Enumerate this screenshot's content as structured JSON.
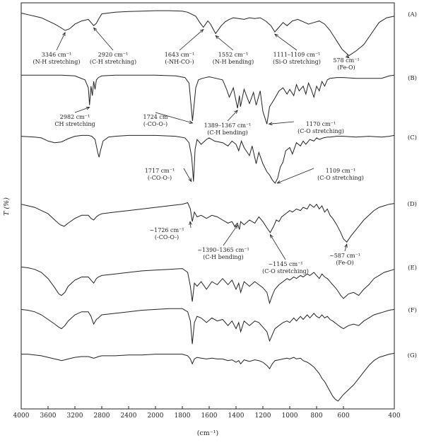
{
  "chart_data": {
    "type": "line",
    "title": "",
    "xlabel": "(cm⁻¹)",
    "ylabel": "T (%)",
    "xlim": [
      4000,
      400
    ],
    "x_reversed": true,
    "x_ticks": [
      4000,
      3600,
      3200,
      2800,
      2400,
      2000,
      1800,
      1600,
      1400,
      1200,
      1000,
      800,
      600,
      400
    ],
    "x_tick_labels": [
      "4000",
      "3600",
      "3200",
      "2800",
      "2400",
      "2000",
      "1800",
      "1600",
      "1400",
      "1200",
      "1000",
      "800",
      "600",
      "400"
    ],
    "grid": false,
    "stacked": true,
    "series": [
      {
        "name": "(A)",
        "x": [
          4000,
          3900,
          3800,
          3700,
          3600,
          3500,
          3420,
          3346,
          3280,
          3200,
          3100,
          3000,
          2960,
          2920,
          2880,
          2850,
          2800,
          2600,
          2400,
          2200,
          2000,
          1900,
          1800,
          1760,
          1700,
          1670,
          1643,
          1610,
          1590,
          1552,
          1510,
          1480,
          1450,
          1420,
          1380,
          1340,
          1300,
          1260,
          1220,
          1180,
          1140,
          1111,
          1080,
          1050,
          1020,
          980,
          940,
          900,
          860,
          820,
          780,
          740,
          700,
          670,
          640,
          610,
          578,
          550,
          520,
          490,
          460,
          430,
          400
        ],
        "y": [
          96,
          94,
          92,
          90,
          86,
          82,
          78,
          74,
          76,
          82,
          86,
          88,
          84,
          80,
          83,
          88,
          95,
          97,
          98,
          98.5,
          99,
          99,
          98.5,
          97,
          92,
          84,
          78,
          86,
          82,
          70,
          80,
          85,
          88,
          90,
          89,
          88,
          90,
          89,
          90,
          86,
          80,
          72,
          78,
          84,
          80,
          86,
          88,
          85,
          82,
          84,
          86,
          82,
          74,
          66,
          58,
          50,
          42,
          48,
          56,
          70,
          84,
          90,
          92
        ]
      },
      {
        "name": "(B)",
        "x": [
          4000,
          3800,
          3600,
          3400,
          3200,
          3050,
          3000,
          2982,
          2960,
          2940,
          2920,
          2900,
          2880,
          2850,
          2800,
          2600,
          2400,
          2000,
          1850,
          1780,
          1750,
          1724,
          1700,
          1680,
          1650,
          1600,
          1550,
          1500,
          1470,
          1450,
          1420,
          1389,
          1375,
          1367,
          1340,
          1300,
          1270,
          1250,
          1220,
          1200,
          1170,
          1150,
          1120,
          1100,
          1080,
          1050,
          1020,
          1000,
          970,
          950,
          930,
          900,
          880,
          860,
          840,
          820,
          800,
          780,
          760,
          740,
          720,
          700,
          650,
          600,
          550,
          500,
          450,
          420,
          400
        ],
        "y": [
          98,
          98,
          98,
          98,
          97,
          92,
          82,
          60,
          84,
          72,
          90,
          80,
          92,
          95,
          97,
          98,
          98,
          98,
          97,
          95,
          88,
          40,
          82,
          92,
          94,
          96,
          94,
          92,
          80,
          70,
          82,
          56,
          72,
          58,
          80,
          62,
          76,
          60,
          78,
          52,
          36,
          58,
          66,
          72,
          78,
          82,
          74,
          80,
          72,
          86,
          78,
          84,
          74,
          88,
          80,
          70,
          84,
          78,
          90,
          84,
          92,
          94,
          95,
          95,
          94,
          94,
          94,
          97,
          98
        ]
      },
      {
        "name": "(C)",
        "x": [
          4000,
          3800,
          3700,
          3600,
          3500,
          3400,
          3300,
          3200,
          3100,
          3000,
          2950,
          2900,
          2880,
          2860,
          2840,
          2820,
          2780,
          2700,
          2600,
          2400,
          2000,
          1850,
          1780,
          1750,
          1730,
          1717,
          1705,
          1690,
          1660,
          1620,
          1600,
          1560,
          1500,
          1460,
          1430,
          1400,
          1380,
          1360,
          1340,
          1300,
          1280,
          1250,
          1230,
          1200,
          1170,
          1150,
          1130,
          1109,
          1090,
          1070,
          1050,
          1030,
          1000,
          980,
          950,
          920,
          900,
          880,
          850,
          820,
          800,
          780,
          750,
          720,
          700,
          650,
          600,
          550,
          500,
          450,
          420,
          400
        ],
        "y": [
          96,
          95,
          94,
          90,
          88,
          89,
          93,
          96,
          97,
          97,
          96,
          92,
          84,
          76,
          70,
          78,
          90,
          95,
          96,
          97,
          97,
          96,
          94,
          88,
          70,
          40,
          80,
          92,
          86,
          92,
          94,
          90,
          88,
          84,
          90,
          86,
          78,
          90,
          82,
          72,
          84,
          62,
          76,
          62,
          52,
          48,
          42,
          38,
          44,
          58,
          64,
          78,
          82,
          74,
          88,
          84,
          90,
          86,
          92,
          90,
          94,
          92,
          94,
          95,
          95,
          96,
          96,
          95,
          96,
          95,
          96,
          97
        ]
      },
      {
        "name": "(D)",
        "x": [
          4000,
          3900,
          3800,
          3700,
          3600,
          3500,
          3420,
          3360,
          3300,
          3200,
          3100,
          3000,
          2960,
          2920,
          2880,
          2850,
          2800,
          2600,
          2400,
          2200,
          2000,
          1900,
          1800,
          1760,
          1740,
          1726,
          1710,
          1690,
          1660,
          1620,
          1580,
          1540,
          1500,
          1460,
          1430,
          1410,
          1390,
          1375,
          1365,
          1340,
          1300,
          1260,
          1230,
          1200,
          1170,
          1145,
          1120,
          1100,
          1080,
          1060,
          1030,
          1000,
          980,
          950,
          920,
          900,
          870,
          850,
          820,
          800,
          780,
          760,
          740,
          720,
          700,
          680,
          650,
          620,
          600,
          587,
          570,
          540,
          520,
          500,
          480,
          460,
          440,
          420,
          400
        ],
        "y": [
          94,
          92,
          90,
          86,
          82,
          74,
          68,
          66,
          70,
          76,
          80,
          80,
          76,
          74,
          78,
          80,
          82,
          84,
          86,
          88,
          90,
          92,
          94,
          96,
          88,
          72,
          84,
          78,
          80,
          76,
          80,
          78,
          74,
          70,
          72,
          66,
          70,
          62,
          72,
          68,
          74,
          70,
          78,
          72,
          64,
          58,
          66,
          74,
          72,
          78,
          82,
          86,
          84,
          88,
          86,
          90,
          88,
          94,
          90,
          94,
          88,
          92,
          84,
          88,
          80,
          76,
          68,
          58,
          50,
          46,
          54,
          66,
          74,
          80,
          86,
          90,
          92,
          94,
          95
        ]
      },
      {
        "name": "(E)",
        "x": [
          4000,
          3900,
          3800,
          3700,
          3600,
          3500,
          3440,
          3400,
          3350,
          3300,
          3200,
          3100,
          3000,
          2960,
          2920,
          2880,
          2850,
          2800,
          2600,
          2400,
          2200,
          2000,
          1900,
          1800,
          1760,
          1740,
          1726,
          1710,
          1690,
          1660,
          1620,
          1580,
          1540,
          1500,
          1460,
          1430,
          1400,
          1380,
          1365,
          1340,
          1300,
          1260,
          1230,
          1200,
          1170,
          1150,
          1130,
          1110,
          1080,
          1050,
          1020,
          1000,
          970,
          950,
          920,
          900,
          870,
          850,
          820,
          800,
          780,
          760,
          740,
          720,
          700,
          680,
          650,
          620,
          600,
          580,
          560,
          540,
          520,
          500,
          480,
          460,
          440,
          420,
          400
        ],
        "y": [
          95,
          94,
          92,
          88,
          80,
          68,
          60,
          58,
          62,
          70,
          78,
          82,
          82,
          78,
          74,
          80,
          82,
          84,
          86,
          88,
          90,
          91,
          92,
          93,
          88,
          70,
          50,
          74,
          70,
          76,
          66,
          76,
          72,
          80,
          72,
          78,
          66,
          74,
          62,
          76,
          70,
          76,
          72,
          68,
          62,
          48,
          58,
          66,
          72,
          76,
          80,
          78,
          82,
          80,
          84,
          82,
          86,
          84,
          88,
          84,
          80,
          86,
          82,
          80,
          76,
          72,
          66,
          58,
          54,
          60,
          62,
          58,
          66,
          72,
          80,
          84,
          88,
          90,
          92
        ]
      },
      {
        "name": "(F)",
        "x": [
          4000,
          3900,
          3800,
          3700,
          3600,
          3500,
          3440,
          3400,
          3350,
          3300,
          3200,
          3100,
          3000,
          2960,
          2920,
          2880,
          2850,
          2800,
          2600,
          2400,
          2200,
          2000,
          1900,
          1800,
          1760,
          1740,
          1726,
          1710,
          1690,
          1660,
          1620,
          1580,
          1540,
          1500,
          1460,
          1430,
          1400,
          1380,
          1365,
          1340,
          1300,
          1260,
          1230,
          1200,
          1170,
          1150,
          1130,
          1110,
          1080,
          1050,
          1020,
          1000,
          970,
          950,
          920,
          900,
          870,
          850,
          820,
          800,
          780,
          760,
          740,
          720,
          700,
          680,
          650,
          620,
          600,
          580,
          560,
          540,
          520,
          500,
          480,
          460,
          440,
          420,
          400
        ],
        "y": [
          95,
          94,
          92,
          88,
          82,
          76,
          72,
          70,
          74,
          80,
          88,
          92,
          92,
          86,
          76,
          82,
          84,
          88,
          90,
          92,
          94,
          95,
          96,
          96,
          92,
          80,
          50,
          78,
          86,
          84,
          78,
          84,
          80,
          82,
          74,
          80,
          70,
          78,
          66,
          80,
          74,
          80,
          78,
          72,
          66,
          54,
          62,
          70,
          74,
          78,
          80,
          78,
          84,
          80,
          86,
          82,
          88,
          84,
          90,
          86,
          84,
          88,
          84,
          86,
          82,
          80,
          76,
          72,
          70,
          74,
          76,
          74,
          80,
          84,
          88,
          90,
          92,
          94,
          95
        ]
      },
      {
        "name": "(G)",
        "x": [
          4000,
          3900,
          3800,
          3700,
          3600,
          3500,
          3440,
          3400,
          3350,
          3300,
          3200,
          3100,
          3000,
          2960,
          2920,
          2880,
          2850,
          2800,
          2600,
          2400,
          2200,
          2000,
          1900,
          1800,
          1760,
          1740,
          1726,
          1710,
          1690,
          1660,
          1620,
          1580,
          1540,
          1500,
          1460,
          1430,
          1400,
          1380,
          1365,
          1340,
          1300,
          1260,
          1230,
          1200,
          1170,
          1150,
          1130,
          1110,
          1080,
          1050,
          1020,
          1000,
          970,
          950,
          920,
          900,
          870,
          850,
          820,
          800,
          780,
          760,
          740,
          720,
          700,
          680,
          660,
          640,
          620,
          600,
          580,
          560,
          540,
          520,
          500,
          480,
          460,
          440,
          420,
          400
        ],
        "y": [
          96,
          96,
          95,
          94,
          92,
          90,
          89,
          88,
          89,
          90,
          92,
          93,
          93,
          92,
          91,
          92,
          93,
          94,
          94,
          95,
          95,
          96,
          96,
          96,
          94,
          90,
          84,
          90,
          92,
          91,
          90,
          91,
          90,
          90,
          88,
          89,
          86,
          88,
          84,
          89,
          87,
          89,
          88,
          86,
          82,
          78,
          84,
          88,
          89,
          90,
          91,
          90,
          92,
          90,
          91,
          88,
          86,
          84,
          80,
          76,
          72,
          66,
          62,
          56,
          50,
          44,
          40,
          38,
          42,
          46,
          52,
          58,
          66,
          74,
          82,
          88,
          92,
          94,
          96,
          97
        ]
      }
    ],
    "annotations": [
      {
        "series": "(A)",
        "x": 3346,
        "lines": [
          "3346 cm⁻¹",
          "(N-H stretching)"
        ]
      },
      {
        "series": "(A)",
        "x": 2920,
        "lines": [
          "2920 cm⁻¹",
          "(C-H stretching)"
        ]
      },
      {
        "series": "(A)",
        "x": 1643,
        "lines": [
          "1643 cm⁻¹",
          "(-NH-CO-)"
        ]
      },
      {
        "series": "(A)",
        "x": 1552,
        "lines": [
          "1552 cm⁻¹",
          "(N-H bending)"
        ]
      },
      {
        "series": "(A)",
        "x": 1111,
        "lines": [
          "1111–1109 cm⁻¹",
          "(Si-O stretching)"
        ]
      },
      {
        "series": "(A)",
        "x": 578,
        "lines": [
          "578 cm⁻¹",
          "(Fe-O)"
        ]
      },
      {
        "series": "(B)",
        "x": 2982,
        "lines": [
          "2982 cm⁻¹",
          "CH stretching"
        ]
      },
      {
        "series": "(B)",
        "x": 1724,
        "lines": [
          "1724 cm",
          "(-CO-O-)"
        ]
      },
      {
        "series": "(B)",
        "x": 1389,
        "lines": [
          "1389–1367 cm⁻¹",
          "(C-H bending)"
        ]
      },
      {
        "series": "(B)",
        "x": 1170,
        "lines": [
          "1170 cm⁻¹",
          "(C-O stretching)"
        ]
      },
      {
        "series": "(C)",
        "x": 1717,
        "lines": [
          "1717 cm⁻¹",
          "(-CO-O-)"
        ]
      },
      {
        "series": "(C)",
        "x": 1109,
        "lines": [
          "1109 cm⁻¹",
          "(C-O stretching)"
        ]
      },
      {
        "series": "(D)",
        "x": 1726,
        "lines": [
          "~1726 cm⁻¹",
          "(-CO-O-)"
        ]
      },
      {
        "series": "(D)",
        "x": 1390,
        "lines": [
          "~1390–1365 cm⁻¹",
          "(C-H bending)"
        ]
      },
      {
        "series": "(D)",
        "x": 1145,
        "lines": [
          "~1145 cm⁻¹",
          "(C-O stretching)"
        ]
      },
      {
        "series": "(D)",
        "x": 587,
        "lines": [
          "~587 cm⁻¹",
          "(Fe-O)"
        ]
      }
    ]
  }
}
